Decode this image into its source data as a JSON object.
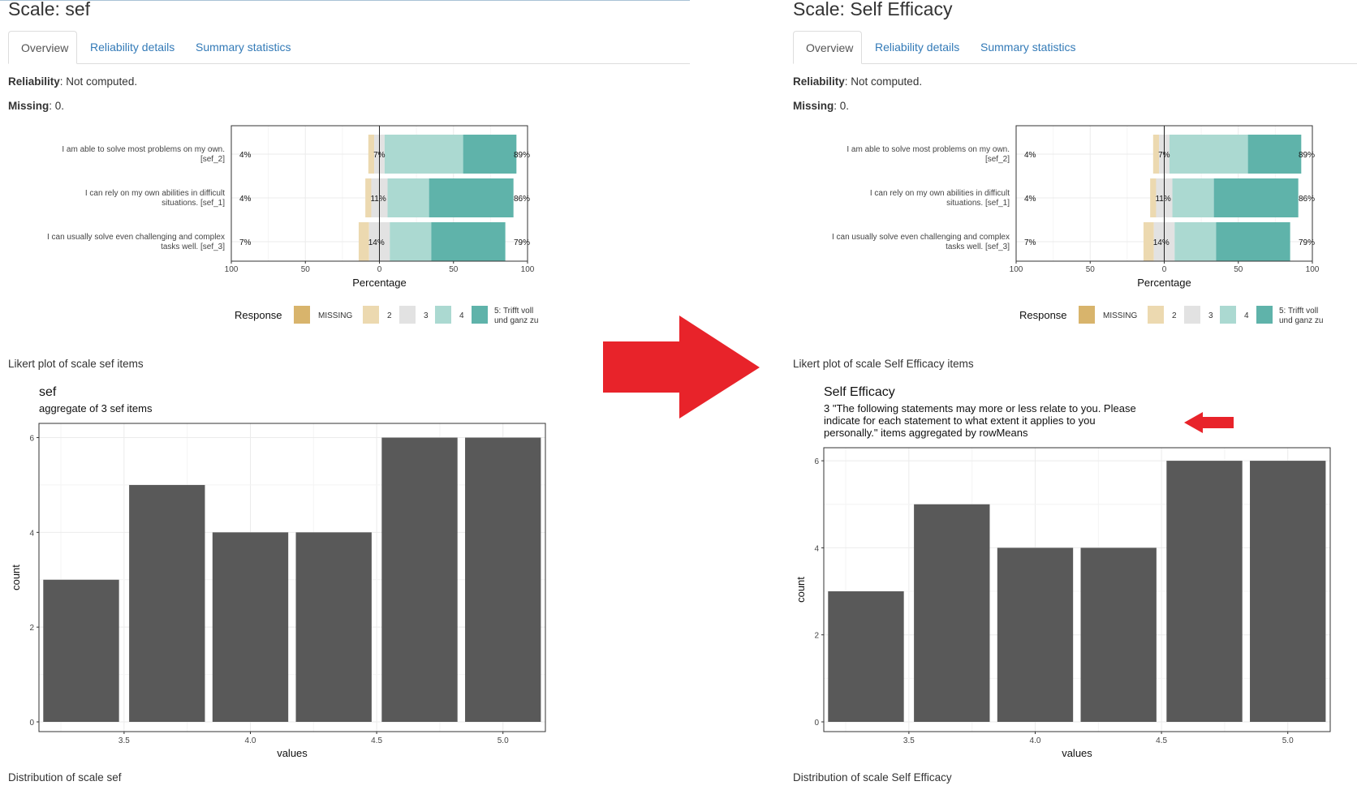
{
  "colors": {
    "missing": "#d8b46c",
    "level2": "#ecd9b0",
    "level3": "#e2e2e2",
    "level4": "#abd9d1",
    "level5": "#5fb3aa",
    "bar": "#595959",
    "link": "#337ab7",
    "red_arrow": "#e8232a"
  },
  "tabs": [
    "Overview",
    "Reliability details",
    "Summary statistics"
  ],
  "reliability_label": "Reliability",
  "reliability_value": ": Not computed.",
  "missing_label": "Missing",
  "missing_value": ": 0.",
  "left": {
    "title": "Scale: sef",
    "likert_caption": "Likert plot of scale sef items",
    "hist_title": "sef",
    "hist_subtitle": [
      "aggregate of 3 sef items"
    ],
    "dist_caption": "Distribution of scale sef"
  },
  "right": {
    "title": "Scale: Self Efficacy",
    "likert_caption": "Likert plot of scale Self Efficacy items",
    "hist_title": "Self Efficacy",
    "hist_subtitle": [
      "3 \"The following statements may more or less relate to you. Please",
      "indicate for each statement to what extent it applies to you",
      "personally.\" items aggregated by rowMeans"
    ],
    "dist_caption": "Distribution of scale Self Efficacy"
  },
  "chart_data": [
    {
      "type": "bar",
      "subtype": "diverging-stacked-likert",
      "xlabel": "Percentage",
      "xticks": [
        "100",
        "50",
        "0",
        "50",
        "100"
      ],
      "xlim": [
        -100,
        100
      ],
      "legend_title": "Response",
      "legend_position": "bottom",
      "legend": [
        "MISSING",
        "2",
        "3",
        "4",
        "5: Trifft voll und ganz zu"
      ],
      "items": [
        {
          "label": [
            "I am able to solve most problems on my own.",
            "[sef_2]"
          ],
          "low": "4%",
          "neutral": "7%",
          "high": "89%",
          "missing": 0,
          "l2": 4,
          "l3": 7,
          "l4": 53,
          "l5": 36
        },
        {
          "label": [
            "I can rely on my own abilities in difficult",
            "situations. [sef_1]"
          ],
          "low": "4%",
          "neutral": "11%",
          "high": "86%",
          "missing": 0,
          "l2": 4,
          "l3": 11,
          "l4": 28,
          "l5": 57
        },
        {
          "label": [
            "I can usually solve even challenging and complex",
            "tasks well. [sef_3]"
          ],
          "low": "7%",
          "neutral": "14%",
          "high": "79%",
          "missing": 0,
          "l2": 7,
          "l3": 14,
          "l4": 28,
          "l5": 50
        }
      ]
    },
    {
      "type": "bar",
      "subtype": "histogram",
      "xlabel": "values",
      "ylabel": "count",
      "x": [
        3.33,
        3.67,
        4.0,
        4.33,
        4.67,
        5.0
      ],
      "values": [
        3,
        5,
        4,
        4,
        6,
        6
      ],
      "xticks": [
        "3.5",
        "4.0",
        "4.5",
        "5.0"
      ],
      "yticks": [
        "0",
        "2",
        "4",
        "6"
      ],
      "ylim": [
        0,
        6.3
      ]
    }
  ]
}
